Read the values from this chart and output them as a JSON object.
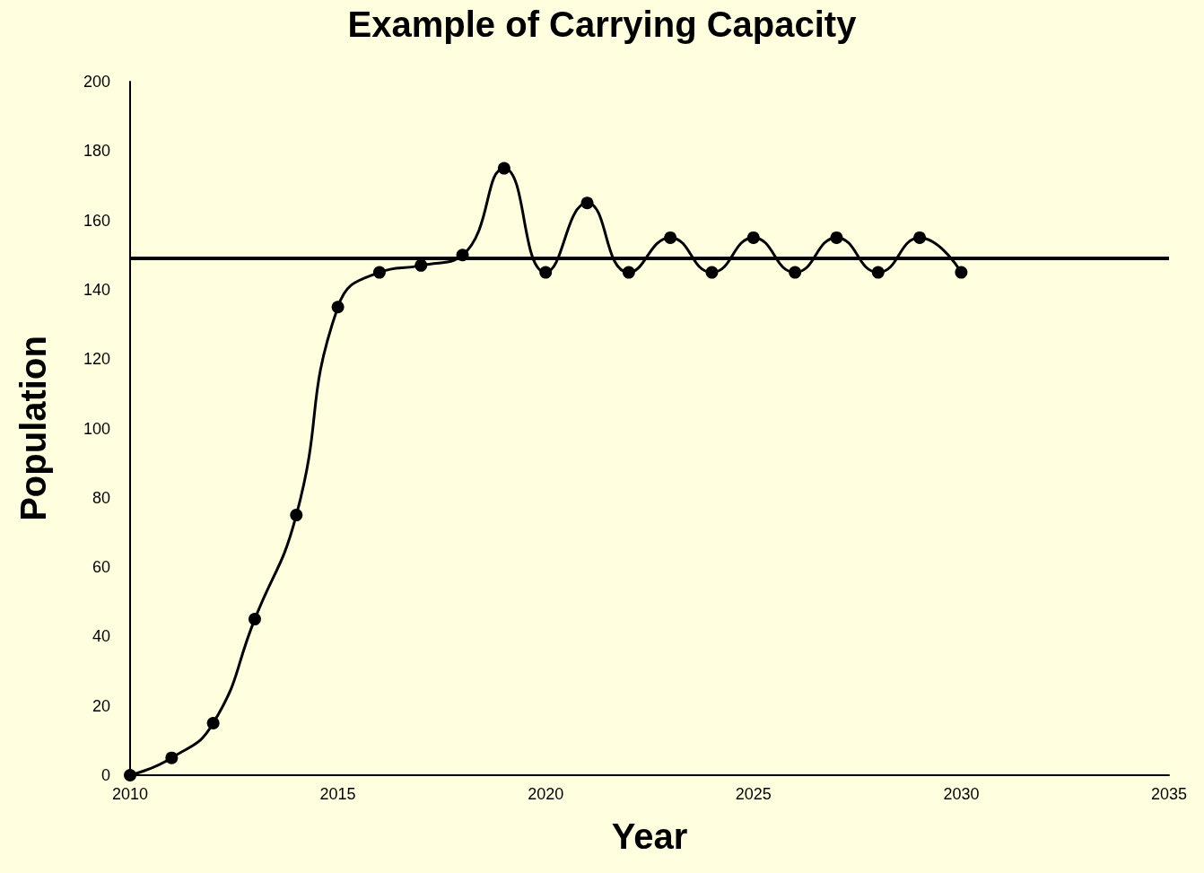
{
  "chart_data": {
    "type": "line",
    "title": "Example of Carrying Capacity",
    "xlabel": "Year",
    "ylabel": "Population",
    "x": [
      2010,
      2011,
      2012,
      2013,
      2014,
      2015,
      2016,
      2017,
      2018,
      2019,
      2020,
      2021,
      2022,
      2023,
      2024,
      2025,
      2026,
      2027,
      2028,
      2029,
      2030
    ],
    "values": [
      0,
      5,
      15,
      45,
      75,
      135,
      145,
      147,
      150,
      175,
      145,
      165,
      145,
      155,
      145,
      155,
      145,
      155,
      145,
      155,
      145
    ],
    "color": "#000000",
    "marker": "circle",
    "line_style": "solid",
    "grid": false,
    "xlim": [
      2010,
      2035
    ],
    "xticks": [
      2010,
      2015,
      2020,
      2025,
      2030,
      2035
    ],
    "ylim": [
      0,
      200
    ],
    "yticks": [
      0,
      20,
      40,
      60,
      80,
      100,
      120,
      140,
      160,
      180,
      200
    ],
    "ref_lines": [
      {
        "axis": "y",
        "value": 149,
        "color": "#000000",
        "line_style": "solid"
      }
    ]
  }
}
